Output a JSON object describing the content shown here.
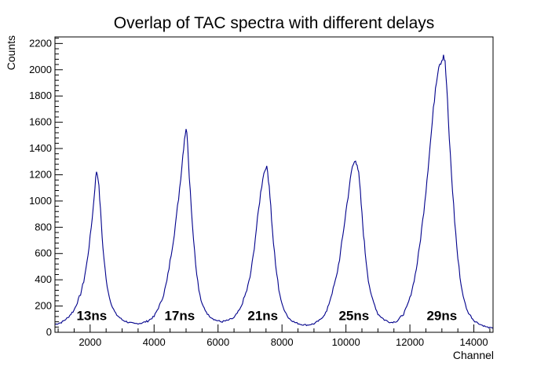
{
  "chart_data": {
    "type": "line",
    "title": "Overlap of TAC spectra with different delays",
    "xlabel": "Channel",
    "ylabel": "Counts",
    "xlim": [
      900,
      14600
    ],
    "ylim": [
      0,
      2250
    ],
    "x_ticks": [
      2000,
      4000,
      6000,
      8000,
      10000,
      12000,
      14000
    ],
    "y_ticks": [
      0,
      200,
      400,
      600,
      800,
      1000,
      1200,
      1400,
      1600,
      1800,
      2000,
      2200
    ],
    "grid": false,
    "annotations": [
      {
        "text": "13ns",
        "x": 2050,
        "y": 130
      },
      {
        "text": "17ns",
        "x": 4800,
        "y": 130
      },
      {
        "text": "21ns",
        "x": 7400,
        "y": 130
      },
      {
        "text": "25ns",
        "x": 10250,
        "y": 130
      },
      {
        "text": "29ns",
        "x": 13000,
        "y": 130
      }
    ],
    "series": [
      {
        "color": "#00008b",
        "x": [
          900,
          1100,
          1300,
          1500,
          1700,
          1800,
          1900,
          2000,
          2100,
          2150,
          2200,
          2250,
          2300,
          2350,
          2400,
          2500,
          2600,
          2700,
          2800,
          3000,
          3200,
          3400,
          3600,
          3800,
          4000,
          4200,
          4300,
          4400,
          4500,
          4600,
          4700,
          4800,
          4900,
          4950,
          5000,
          5050,
          5100,
          5200,
          5300,
          5400,
          5500,
          5700,
          5900,
          6100,
          6300,
          6500,
          6700,
          6900,
          7000,
          7100,
          7200,
          7300,
          7400,
          7500,
          7550,
          7600,
          7650,
          7700,
          7800,
          7900,
          8000,
          8200,
          8400,
          8600,
          8800,
          9000,
          9200,
          9400,
          9600,
          9700,
          9800,
          9900,
          10000,
          10100,
          10200,
          10300,
          10350,
          10400,
          10450,
          10500,
          10550,
          10600,
          10700,
          10800,
          11000,
          11200,
          11400,
          11600,
          11800,
          11900,
          12000,
          12100,
          12200,
          12300,
          12400,
          12500,
          12600,
          12700,
          12800,
          12900,
          13000,
          13050,
          13100,
          13150,
          13200,
          13300,
          13400,
          13500,
          13600,
          13700,
          13800,
          14000,
          14200,
          14400,
          14600
        ],
        "y": [
          60,
          75,
          110,
          170,
          290,
          390,
          530,
          720,
          960,
          1110,
          1230,
          1180,
          1020,
          830,
          640,
          400,
          270,
          190,
          140,
          95,
          75,
          65,
          70,
          85,
          120,
          220,
          290,
          390,
          540,
          700,
          880,
          1100,
          1350,
          1480,
          1560,
          1450,
          1200,
          820,
          520,
          320,
          210,
          130,
          95,
          80,
          90,
          110,
          180,
          320,
          420,
          580,
          790,
          1000,
          1180,
          1270,
          1220,
          1120,
          960,
          770,
          510,
          330,
          210,
          110,
          75,
          60,
          55,
          65,
          95,
          160,
          330,
          420,
          560,
          730,
          920,
          1100,
          1260,
          1310,
          1290,
          1200,
          1060,
          900,
          750,
          610,
          400,
          270,
          140,
          95,
          75,
          85,
          140,
          190,
          260,
          360,
          480,
          650,
          850,
          1080,
          1340,
          1600,
          1870,
          2040,
          2080,
          2120,
          2050,
          1880,
          1620,
          1200,
          850,
          560,
          360,
          240,
          160,
          90,
          60,
          40,
          30
        ]
      }
    ]
  }
}
